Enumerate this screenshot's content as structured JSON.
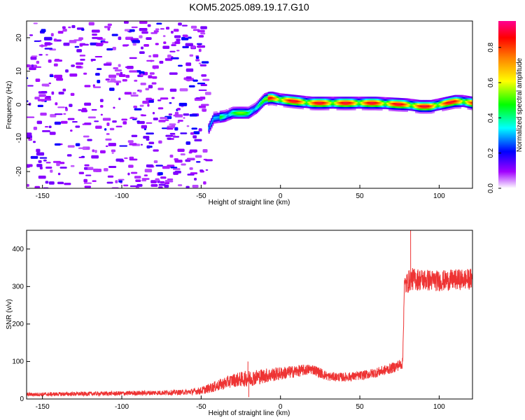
{
  "title": "KOM5.2025.089.19.17.G10",
  "chart_data": [
    {
      "type": "heatmap",
      "xlabel": "Height of straight line (km)",
      "ylabel": "Frequency (Hz)",
      "xlim": [
        -160,
        121
      ],
      "ylim": [
        -25,
        25
      ],
      "xticks": [
        -150,
        -100,
        -50,
        0,
        50,
        100
      ],
      "yticks": [
        -20,
        -10,
        0,
        10,
        20
      ],
      "colorbar": {
        "label": "Normalized spectral amplitude",
        "range": [
          0,
          0.95
        ],
        "ticks": [
          0.0,
          0.2,
          0.4,
          0.6,
          0.8
        ],
        "tick_labels": [
          "0.0",
          "0.2",
          "0.4",
          "0.6",
          "0.8"
        ],
        "colormap": "rainbow"
      },
      "noise_region_km": [
        -160,
        -45
      ],
      "signal_ridge": {
        "x": [
          -45,
          -42,
          -35,
          -30,
          -25,
          -20,
          -15,
          -10,
          -7,
          -5,
          0,
          10,
          20,
          40,
          60,
          80,
          88,
          95,
          100,
          105,
          110,
          115,
          121
        ],
        "y": [
          -7,
          -4,
          -3.5,
          -2.5,
          -2.5,
          -2.5,
          -1,
          1.5,
          2,
          2,
          1.5,
          1,
          0.5,
          0.5,
          0.5,
          0,
          -0.5,
          -0.5,
          0,
          0.5,
          1,
          1,
          0.5
        ],
        "peak_amplitude": 0.9
      }
    },
    {
      "type": "line",
      "xlabel": "Height of straight line (km)",
      "ylabel": "SNR (v/v)",
      "xlim": [
        -160,
        121
      ],
      "ylim": [
        0,
        450
      ],
      "xticks": [
        -150,
        -100,
        -50,
        0,
        50,
        100
      ],
      "yticks": [
        0,
        100,
        200,
        300,
        400
      ],
      "series": [
        {
          "color": "#ee3333",
          "trend_x": [
            -160,
            -100,
            -60,
            -50,
            -40,
            -30,
            -20,
            -10,
            0,
            10,
            20,
            25,
            30,
            40,
            50,
            60,
            70,
            77,
            78,
            80,
            82,
            90,
            100,
            110,
            121
          ],
          "trend_y": [
            12,
            15,
            18,
            22,
            35,
            50,
            55,
            62,
            68,
            74,
            80,
            70,
            60,
            58,
            62,
            70,
            82,
            95,
            300,
            310,
            320,
            318,
            315,
            318,
            320
          ],
          "noise_amplitude": [
            5,
            6,
            7,
            10,
            15,
            18,
            22,
            20,
            18,
            16,
            14,
            14,
            12,
            12,
            12,
            13,
            14,
            15,
            30,
            30,
            30,
            30,
            28,
            28,
            28
          ],
          "spikes": [
            {
              "x": -20,
              "y": 5
            },
            {
              "x": -20.5,
              "y": 100
            },
            {
              "x": 82,
              "y": 450
            }
          ]
        }
      ]
    }
  ]
}
